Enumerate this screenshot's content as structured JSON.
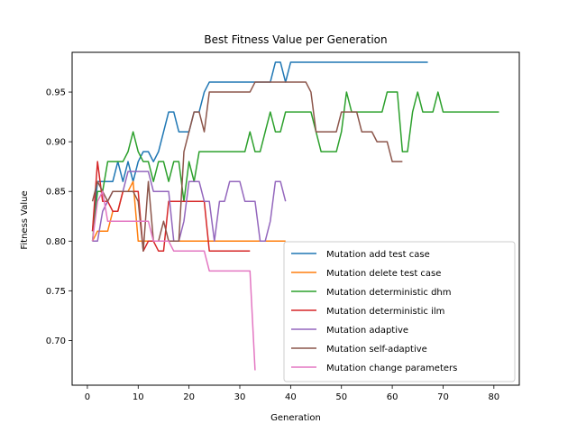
{
  "chart_data": {
    "type": "line",
    "title": "Best Fitness Value per Generation",
    "xlabel": "Generation",
    "ylabel": "Fitness Value",
    "xlim": [
      -3.0,
      85.0
    ],
    "ylim": [
      0.655,
      0.99
    ],
    "xticks": [
      0,
      10,
      20,
      30,
      40,
      50,
      60,
      70,
      80
    ],
    "yticks": [
      0.7,
      0.75,
      0.8,
      0.85,
      0.9,
      0.95
    ],
    "ytick_labels": [
      "0.70",
      "0.75",
      "0.80",
      "0.85",
      "0.90",
      "0.95"
    ],
    "grid": false,
    "legend_position": "lower-right",
    "series": [
      {
        "name": "Mutation add test case",
        "color": "#1f77b4",
        "x": [
          1,
          2,
          3,
          4,
          5,
          6,
          7,
          8,
          9,
          10,
          11,
          12,
          13,
          14,
          15,
          16,
          17,
          18,
          19,
          20,
          21,
          22,
          23,
          24,
          25,
          26,
          27,
          28,
          29,
          30,
          31,
          32,
          33,
          34,
          35,
          36,
          37,
          38,
          39,
          40,
          41,
          42,
          43,
          44,
          45,
          46,
          47,
          48,
          49,
          50,
          51,
          52,
          53,
          54,
          55,
          56,
          57,
          58,
          59,
          60,
          61,
          62,
          63,
          64,
          65,
          66,
          67
        ],
        "y": [
          0.81,
          0.86,
          0.86,
          0.86,
          0.86,
          0.88,
          0.86,
          0.88,
          0.86,
          0.88,
          0.89,
          0.89,
          0.88,
          0.89,
          0.91,
          0.93,
          0.93,
          0.91,
          0.91,
          0.91,
          0.93,
          0.93,
          0.95,
          0.96,
          0.96,
          0.96,
          0.96,
          0.96,
          0.96,
          0.96,
          0.96,
          0.96,
          0.96,
          0.96,
          0.96,
          0.96,
          0.98,
          0.98,
          0.96,
          0.98,
          0.98,
          0.98,
          0.98,
          0.98,
          0.98,
          0.98,
          0.98,
          0.98,
          0.98,
          0.98,
          0.98,
          0.98,
          0.98,
          0.98,
          0.98,
          0.98,
          0.98,
          0.98,
          0.98,
          0.98,
          0.98,
          0.98,
          0.98,
          0.98,
          0.98,
          0.98,
          0.98
        ]
      },
      {
        "name": "Mutation delete test case",
        "color": "#ff7f0e",
        "x": [
          1,
          2,
          3,
          4,
          5,
          6,
          7,
          8,
          9,
          10,
          11,
          12,
          13,
          14,
          15,
          16,
          17,
          18,
          19,
          20,
          21,
          22,
          23,
          24,
          25,
          26,
          27,
          28,
          29,
          30,
          31,
          32,
          33,
          34,
          35,
          36,
          37,
          38,
          39
        ],
        "y": [
          0.8,
          0.81,
          0.81,
          0.81,
          0.83,
          0.83,
          0.85,
          0.85,
          0.86,
          0.8,
          0.8,
          0.8,
          0.8,
          0.8,
          0.8,
          0.8,
          0.8,
          0.8,
          0.8,
          0.8,
          0.8,
          0.8,
          0.8,
          0.8,
          0.8,
          0.8,
          0.8,
          0.8,
          0.8,
          0.8,
          0.8,
          0.8,
          0.8,
          0.8,
          0.8,
          0.8,
          0.8,
          0.8,
          0.8
        ]
      },
      {
        "name": "Mutation deterministic dhm",
        "color": "#2ca02c",
        "x": [
          1,
          2,
          3,
          4,
          5,
          6,
          7,
          8,
          9,
          10,
          11,
          12,
          13,
          14,
          15,
          16,
          17,
          18,
          19,
          20,
          21,
          22,
          23,
          24,
          25,
          26,
          27,
          28,
          29,
          30,
          31,
          32,
          33,
          34,
          35,
          36,
          37,
          38,
          39,
          40,
          41,
          42,
          43,
          44,
          45,
          46,
          47,
          48,
          49,
          50,
          51,
          52,
          53,
          54,
          55,
          56,
          57,
          58,
          59,
          60,
          61,
          62,
          63,
          64,
          65,
          66,
          67,
          68,
          69,
          70,
          71,
          72,
          73,
          74,
          75,
          76,
          77,
          78,
          79,
          80,
          81
        ],
        "y": [
          0.8,
          0.85,
          0.85,
          0.88,
          0.88,
          0.88,
          0.88,
          0.89,
          0.91,
          0.89,
          0.88,
          0.88,
          0.86,
          0.88,
          0.88,
          0.86,
          0.88,
          0.88,
          0.84,
          0.88,
          0.86,
          0.89,
          0.89,
          0.89,
          0.89,
          0.89,
          0.89,
          0.89,
          0.89,
          0.89,
          0.89,
          0.91,
          0.89,
          0.89,
          0.91,
          0.93,
          0.91,
          0.91,
          0.93,
          0.93,
          0.93,
          0.93,
          0.93,
          0.93,
          0.91,
          0.89,
          0.89,
          0.89,
          0.89,
          0.91,
          0.95,
          0.93,
          0.93,
          0.93,
          0.93,
          0.93,
          0.93,
          0.93,
          0.95,
          0.95,
          0.95,
          0.89,
          0.89,
          0.93,
          0.95,
          0.93,
          0.93,
          0.93,
          0.95,
          0.93,
          0.93,
          0.93,
          0.93,
          0.93,
          0.93,
          0.93,
          0.93,
          0.93,
          0.93,
          0.93,
          0.93
        ]
      },
      {
        "name": "Mutation deterministic ilm",
        "color": "#d62728",
        "x": [
          1,
          2,
          3,
          4,
          5,
          6,
          7,
          8,
          9,
          10,
          11,
          12,
          13,
          14,
          15,
          16,
          17,
          18,
          19,
          20,
          21,
          22,
          23,
          24,
          25,
          26,
          27,
          28,
          29,
          30,
          31,
          32
        ],
        "y": [
          0.81,
          0.88,
          0.84,
          0.84,
          0.83,
          0.83,
          0.85,
          0.85,
          0.85,
          0.85,
          0.79,
          0.8,
          0.8,
          0.79,
          0.79,
          0.84,
          0.84,
          0.84,
          0.84,
          0.84,
          0.84,
          0.84,
          0.84,
          0.79,
          0.79,
          0.79,
          0.79,
          0.79,
          0.79,
          0.79,
          0.79,
          0.79
        ]
      },
      {
        "name": "Mutation adaptive",
        "color": "#9467bd",
        "x": [
          1,
          2,
          3,
          4,
          5,
          6,
          7,
          8,
          9,
          10,
          11,
          12,
          13,
          14,
          15,
          16,
          17,
          18,
          19,
          20,
          21,
          22,
          23,
          24,
          25,
          26,
          27,
          28,
          29,
          30,
          31,
          32,
          33,
          34,
          35,
          36,
          37,
          38,
          39
        ],
        "y": [
          0.8,
          0.8,
          0.83,
          0.84,
          0.85,
          0.85,
          0.85,
          0.87,
          0.87,
          0.87,
          0.87,
          0.87,
          0.85,
          0.85,
          0.85,
          0.85,
          0.8,
          0.8,
          0.82,
          0.86,
          0.86,
          0.86,
          0.84,
          0.84,
          0.8,
          0.84,
          0.84,
          0.86,
          0.86,
          0.86,
          0.84,
          0.84,
          0.84,
          0.8,
          0.8,
          0.82,
          0.86,
          0.86,
          0.84
        ]
      },
      {
        "name": "Mutation self-adaptive",
        "color": "#8c564b",
        "x": [
          1,
          2,
          3,
          4,
          5,
          6,
          7,
          8,
          9,
          10,
          11,
          12,
          13,
          14,
          15,
          16,
          17,
          18,
          19,
          20,
          21,
          22,
          23,
          24,
          25,
          26,
          27,
          28,
          29,
          30,
          31,
          32,
          33,
          34,
          35,
          36,
          37,
          38,
          39,
          40,
          41,
          42,
          43,
          44,
          45,
          46,
          47,
          48,
          49,
          50,
          51,
          52,
          53,
          54,
          55,
          56,
          57,
          58,
          59,
          60,
          61,
          62
        ],
        "y": [
          0.84,
          0.86,
          0.85,
          0.84,
          0.85,
          0.85,
          0.85,
          0.85,
          0.85,
          0.84,
          0.79,
          0.86,
          0.8,
          0.8,
          0.82,
          0.8,
          0.8,
          0.8,
          0.89,
          0.91,
          0.93,
          0.93,
          0.91,
          0.95,
          0.95,
          0.95,
          0.95,
          0.95,
          0.95,
          0.95,
          0.95,
          0.95,
          0.96,
          0.96,
          0.96,
          0.96,
          0.96,
          0.96,
          0.96,
          0.96,
          0.96,
          0.96,
          0.96,
          0.95,
          0.91,
          0.91,
          0.91,
          0.91,
          0.91,
          0.93,
          0.93,
          0.93,
          0.93,
          0.91,
          0.91,
          0.91,
          0.9,
          0.9,
          0.9,
          0.88,
          0.88,
          0.88
        ]
      },
      {
        "name": "Mutation change parameters",
        "color": "#e377c2",
        "x": [
          1,
          2,
          3,
          4,
          5,
          6,
          7,
          8,
          9,
          10,
          11,
          12,
          13,
          14,
          15,
          16,
          17,
          18,
          19,
          20,
          21,
          22,
          23,
          24,
          25,
          26,
          27,
          28,
          29,
          30,
          31,
          32,
          33
        ],
        "y": [
          0.8,
          0.84,
          0.85,
          0.82,
          0.82,
          0.82,
          0.82,
          0.82,
          0.82,
          0.82,
          0.82,
          0.82,
          0.8,
          0.8,
          0.8,
          0.8,
          0.79,
          0.79,
          0.79,
          0.79,
          0.79,
          0.79,
          0.79,
          0.77,
          0.77,
          0.77,
          0.77,
          0.77,
          0.77,
          0.77,
          0.77,
          0.77,
          0.67
        ]
      }
    ]
  }
}
